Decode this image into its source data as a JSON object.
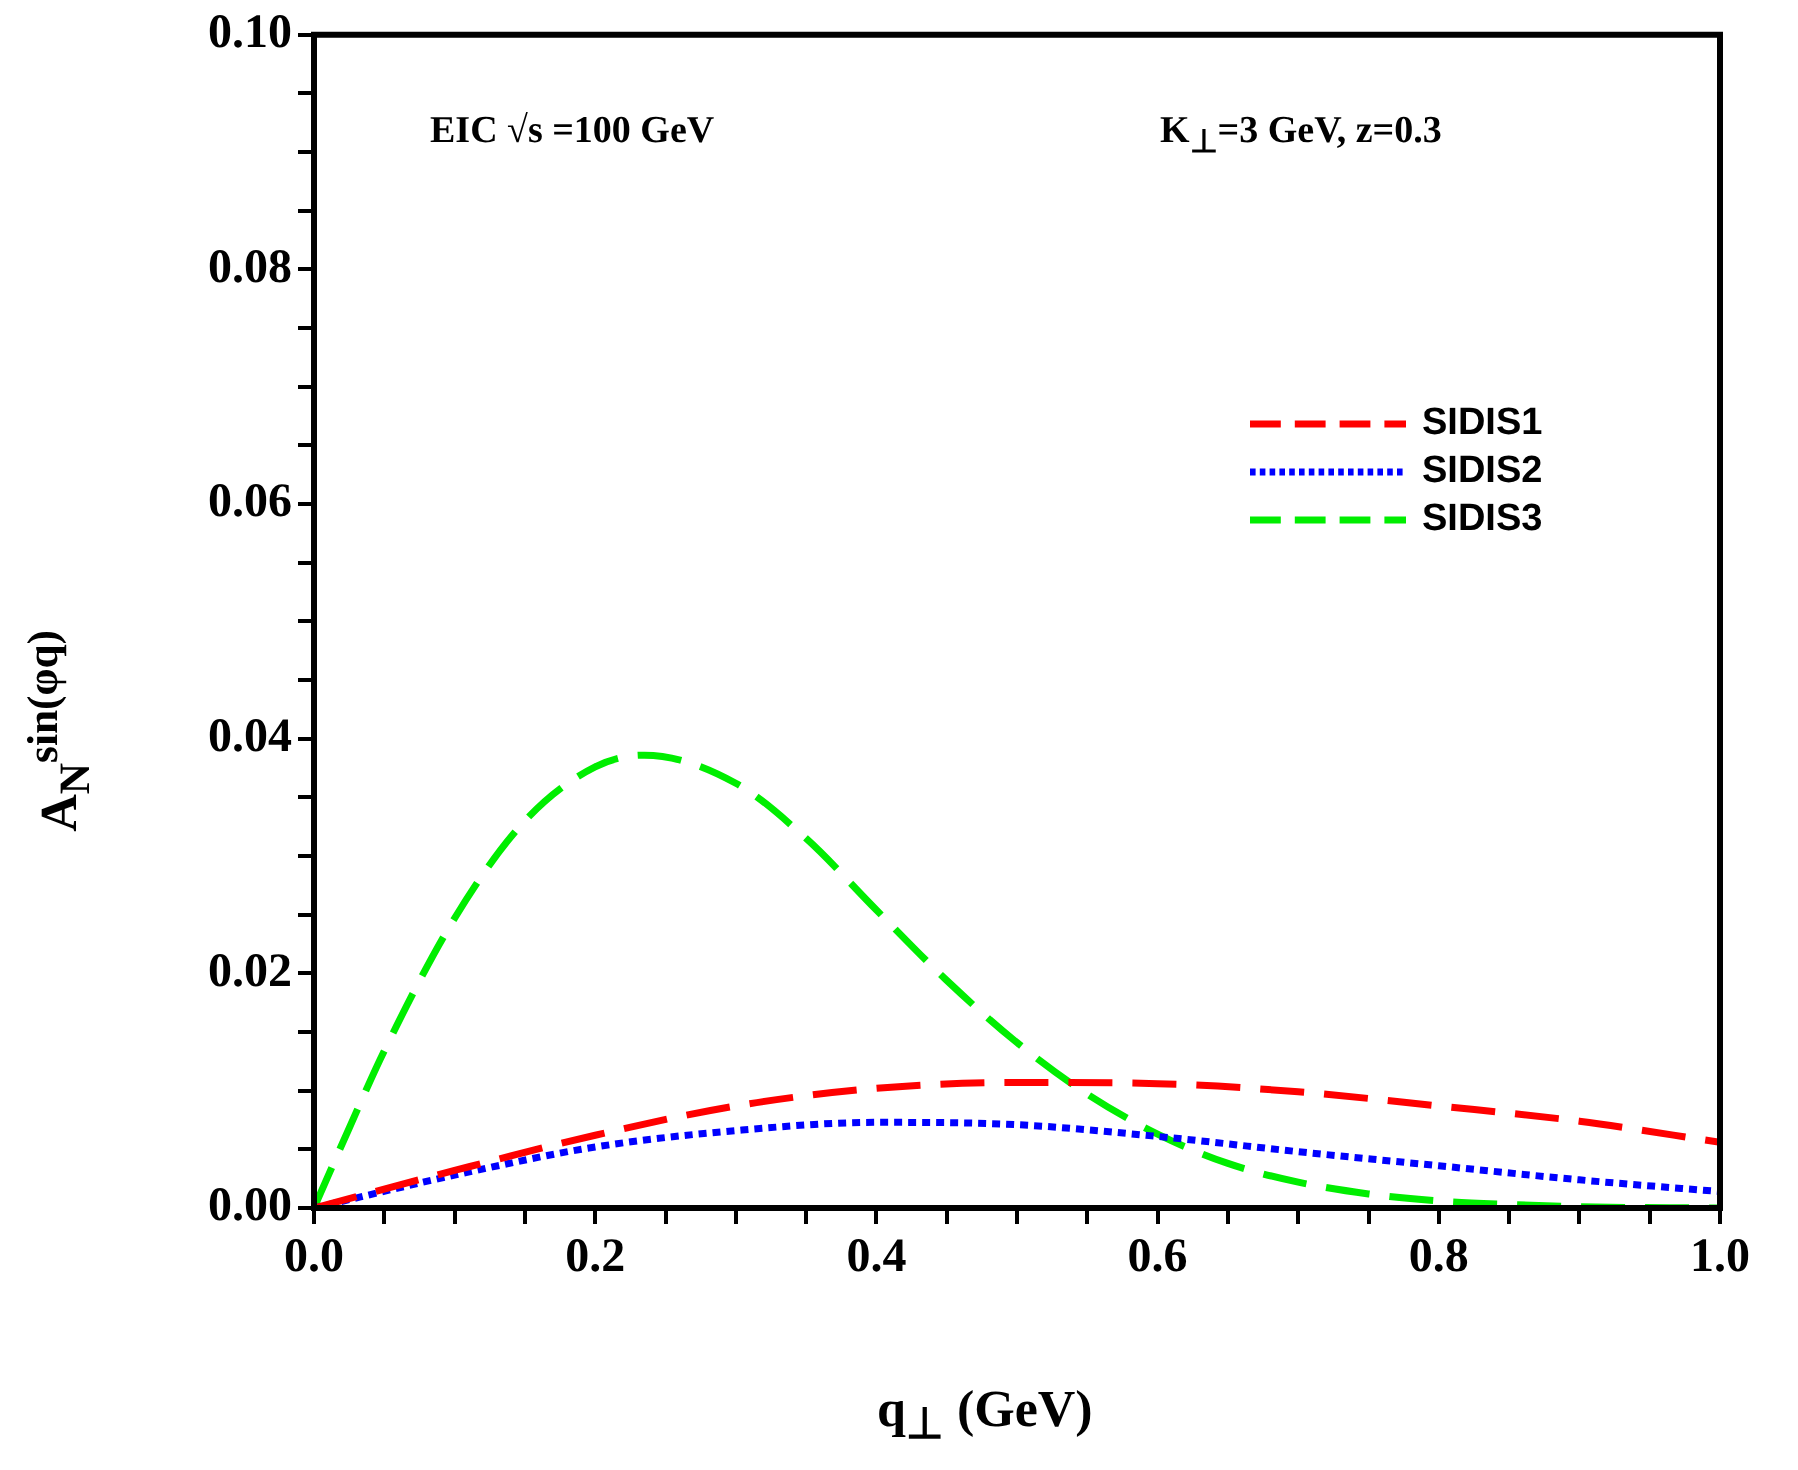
{
  "chart_data": {
    "type": "line",
    "xlabel": "q$_{⊥}$ (GeV)",
    "ylabel": "A$_{N}$$^{sin(φq)}$",
    "annotations": [
      "EIC √s =100 GeV",
      "K$_{⊥}$=3 GeV,  z=0.3"
    ],
    "xlim": [
      0,
      1
    ],
    "ylim": [
      0,
      0.1
    ],
    "xticks": [
      {
        "value": 0,
        "label": "0.0"
      },
      {
        "value": 0.05,
        "label": null
      },
      {
        "value": 0.1,
        "label": null
      },
      {
        "value": 0.15,
        "label": null
      },
      {
        "value": 0.2,
        "label": "0.2"
      },
      {
        "value": 0.25,
        "label": null
      },
      {
        "value": 0.3,
        "label": null
      },
      {
        "value": 0.35,
        "label": null
      },
      {
        "value": 0.4,
        "label": "0.4"
      },
      {
        "value": 0.45,
        "label": null
      },
      {
        "value": 0.5,
        "label": null
      },
      {
        "value": 0.55,
        "label": null
      },
      {
        "value": 0.6,
        "label": "0.6"
      },
      {
        "value": 0.65,
        "label": null
      },
      {
        "value": 0.7,
        "label": null
      },
      {
        "value": 0.75,
        "label": null
      },
      {
        "value": 0.8,
        "label": "0.8"
      },
      {
        "value": 0.85,
        "label": null
      },
      {
        "value": 0.9,
        "label": null
      },
      {
        "value": 0.95,
        "label": null
      },
      {
        "value": 1,
        "label": "1.0"
      }
    ],
    "yticks": [
      {
        "value": 0,
        "label": "0.00"
      },
      {
        "value": 0.005,
        "label": null
      },
      {
        "value": 0.01,
        "label": null
      },
      {
        "value": 0.015,
        "label": null
      },
      {
        "value": 0.02,
        "label": "0.02"
      },
      {
        "value": 0.025,
        "label": null
      },
      {
        "value": 0.03,
        "label": null
      },
      {
        "value": 0.035,
        "label": null
      },
      {
        "value": 0.04,
        "label": "0.04"
      },
      {
        "value": 0.045,
        "label": null
      },
      {
        "value": 0.05,
        "label": null
      },
      {
        "value": 0.055,
        "label": null
      },
      {
        "value": 0.06,
        "label": "0.06"
      },
      {
        "value": 0.065,
        "label": null
      },
      {
        "value": 0.07,
        "label": null
      },
      {
        "value": 0.075,
        "label": null
      },
      {
        "value": 0.08,
        "label": "0.08"
      },
      {
        "value": 0.085,
        "label": null
      },
      {
        "value": 0.09,
        "label": null
      },
      {
        "value": 0.095,
        "label": null
      },
      {
        "value": 0.1,
        "label": "0.10"
      }
    ],
    "grid": false,
    "legend": "right",
    "marker": "none",
    "series": [
      {
        "name": "SIDIS1",
        "color": "#ff0000",
        "line_style": "dashed",
        "x": [
          0,
          0.1,
          0.2,
          0.3,
          0.4,
          0.5,
          0.6,
          0.7,
          0.8,
          0.9,
          1
        ],
        "values": [
          0,
          0.0032,
          0.0062,
          0.0087,
          0.0102,
          0.0107,
          0.0106,
          0.0099,
          0.0087,
          0.0074,
          0.0056
        ]
      },
      {
        "name": "SIDIS2",
        "color": "#0000ff",
        "line_style": "dotted",
        "x": [
          0,
          0.1,
          0.2,
          0.3,
          0.4,
          0.5,
          0.6,
          0.7,
          0.8,
          0.9,
          1
        ],
        "values": [
          0,
          0.0028,
          0.0052,
          0.0066,
          0.0073,
          0.0071,
          0.0061,
          0.0048,
          0.0036,
          0.0024,
          0.0014
        ]
      },
      {
        "name": "SIDIS3",
        "color": "#00ee00",
        "line_style": "dashed",
        "x": [
          0,
          0.025,
          0.05,
          0.1,
          0.15,
          0.2,
          0.235,
          0.3,
          0.35,
          0.4,
          0.45,
          0.5,
          0.55,
          0.6,
          0.65,
          0.7,
          0.75,
          0.8,
          0.85,
          0.9,
          1
        ],
        "values": [
          0,
          0.0068,
          0.0134,
          0.0247,
          0.033,
          0.0376,
          0.0386,
          0.0362,
          0.0315,
          0.0254,
          0.0194,
          0.0141,
          0.0097,
          0.0063,
          0.0038,
          0.0022,
          0.0012,
          0.0006,
          0.0003,
          0.0001,
          0
        ]
      }
    ]
  }
}
